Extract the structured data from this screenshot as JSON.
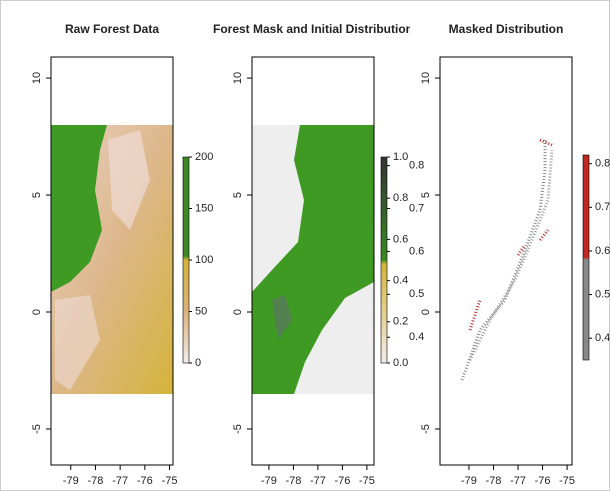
{
  "chart_data": [
    {
      "type": "raster",
      "title": "Raw Forest Data",
      "xlim": [
        -79.8,
        -74.86
      ],
      "xticks": [
        -79,
        -78,
        -77,
        -76,
        -75
      ],
      "ylim": [
        -6.54,
        10.9
      ],
      "yticks": [
        -5,
        0,
        5,
        10
      ],
      "colorbars": [
        {
          "lim": [
            0,
            200
          ],
          "ticks": [
            0,
            50,
            100,
            150,
            200
          ]
        }
      ]
    },
    {
      "type": "raster",
      "title": "Forest Mask and Initial Distribution",
      "xlim": [
        -79.69,
        -74.71
      ],
      "xticks": [
        -79,
        -78,
        -77,
        -76,
        -75
      ],
      "ylim": [
        -6.54,
        10.9
      ],
      "yticks": [
        -5,
        0,
        5,
        10
      ],
      "colorbars": [
        {
          "lim": [
            0,
            1
          ],
          "ticks": [
            {
              "value": 0,
              "label": "0.0"
            },
            0.2,
            0.4,
            0.6,
            0.8,
            {
              "value": 1,
              "label": "1.0"
            }
          ]
        },
        {
          "lim": [
            0.34,
            0.82
          ],
          "ticks": [
            0.4,
            0.5,
            0.6,
            0.7,
            0.8
          ]
        }
      ]
    },
    {
      "type": "raster",
      "title": "Masked Distribution",
      "xlim": [
        -80.18,
        -74.8
      ],
      "xticks": [
        -79,
        -78,
        -77,
        -76,
        -75
      ],
      "ylim": [
        -6.54,
        10.9
      ],
      "yticks": [
        -5,
        0,
        5,
        10
      ],
      "colorbars": [
        {
          "lim": [
            0.35,
            0.82
          ],
          "ticks": [
            0.4,
            0.5,
            0.6,
            0.7,
            0.8
          ]
        }
      ]
    }
  ]
}
